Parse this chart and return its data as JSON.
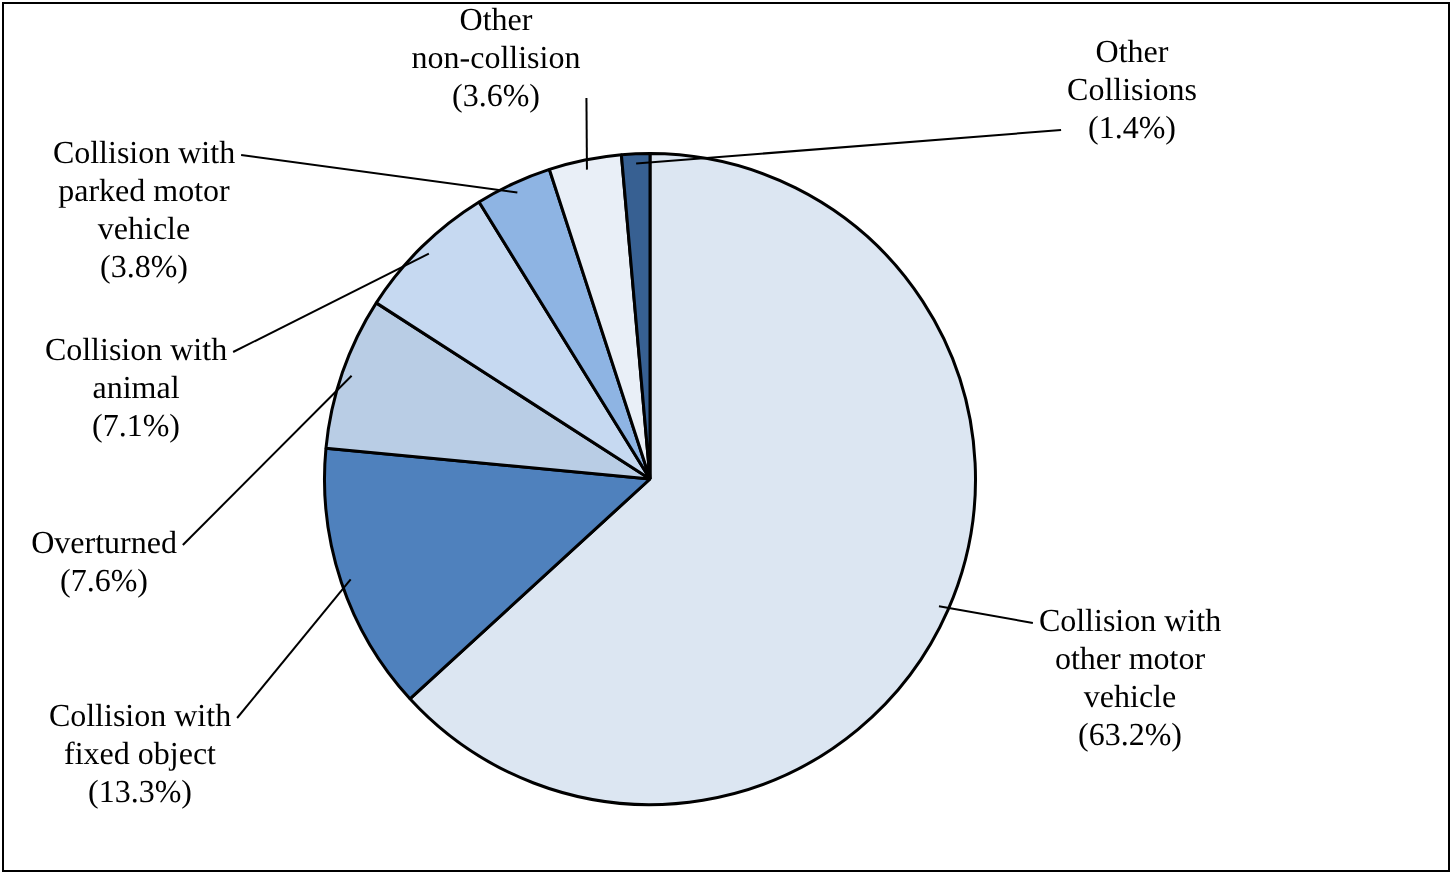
{
  "chart_data": {
    "type": "pie",
    "categories": [
      "Collision with other motor vehicle",
      "Collision with fixed object",
      "Overturned",
      "Collision with animal",
      "Collision with parked motor vehicle",
      "Other non-collision",
      "Other Collisions"
    ],
    "values": [
      63.2,
      13.3,
      7.6,
      7.1,
      3.8,
      3.6,
      1.4
    ],
    "colors": [
      "#dce6f2",
      "#4f81bd",
      "#b9cde5",
      "#c6d9f1",
      "#8eb4e3",
      "#e9eff7",
      "#376092"
    ],
    "value_labels": [
      "(63.2%)",
      "(13.3%)",
      "(7.6%)",
      "(7.1%)",
      "(3.8%)",
      "(3.6%)",
      "(1.4%)"
    ],
    "legend": false
  }
}
